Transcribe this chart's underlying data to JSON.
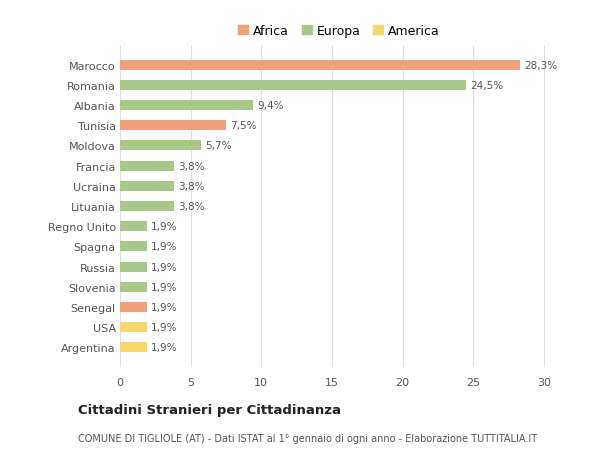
{
  "categories": [
    "Argentina",
    "USA",
    "Senegal",
    "Slovenia",
    "Russia",
    "Spagna",
    "Regno Unito",
    "Lituania",
    "Ucraina",
    "Francia",
    "Moldova",
    "Tunisia",
    "Albania",
    "Romania",
    "Marocco"
  ],
  "values": [
    1.9,
    1.9,
    1.9,
    1.9,
    1.9,
    1.9,
    1.9,
    3.8,
    3.8,
    3.8,
    5.7,
    7.5,
    9.4,
    24.5,
    28.3
  ],
  "colors": [
    "#f5d76e",
    "#f5d76e",
    "#f0a07a",
    "#a8c88a",
    "#a8c88a",
    "#a8c88a",
    "#a8c88a",
    "#a8c88a",
    "#a8c88a",
    "#a8c88a",
    "#a8c88a",
    "#f0a07a",
    "#a8c88a",
    "#a8c88a",
    "#f0a07a"
  ],
  "labels": [
    "1,9%",
    "1,9%",
    "1,9%",
    "1,9%",
    "1,9%",
    "1,9%",
    "1,9%",
    "3,8%",
    "3,8%",
    "3,8%",
    "5,7%",
    "7,5%",
    "9,4%",
    "24,5%",
    "28,3%"
  ],
  "legend": [
    {
      "label": "Africa",
      "color": "#f0a07a"
    },
    {
      "label": "Europa",
      "color": "#a8c88a"
    },
    {
      "label": "America",
      "color": "#f5d76e"
    }
  ],
  "title": "Cittadini Stranieri per Cittadinanza",
  "subtitle": "COMUNE DI TIGLIOLE (AT) - Dati ISTAT al 1° gennaio di ogni anno - Elaborazione TUTTITALIA.IT",
  "xlim": [
    0,
    31
  ],
  "xticks": [
    0,
    5,
    10,
    15,
    20,
    25,
    30
  ],
  "bg_color": "#ffffff",
  "grid_color": "#e0e0e0",
  "bar_height": 0.5
}
